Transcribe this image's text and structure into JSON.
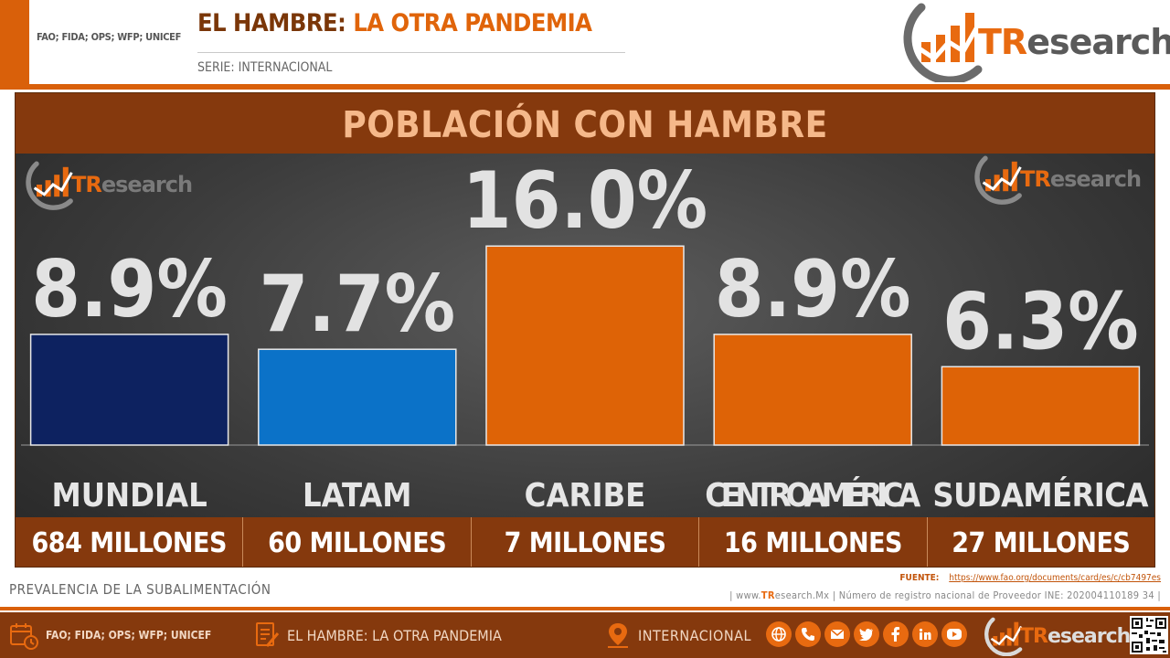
{
  "header": {
    "sources": "FAO; FIDA; OPS; WFP; UNICEF",
    "title_a": "EL HAMBRE:",
    "title_b": "LA OTRA PANDEMIA",
    "series": "SERIE: INTERNACIONAL"
  },
  "brand": {
    "logo_tr": "TR",
    "logo_rest": "esearch"
  },
  "colors": {
    "accent": "#d9600a",
    "dark_brown": "#85390d",
    "mundial": "#0d2260",
    "latam": "#0b72c8",
    "regions": "#de6306"
  },
  "chart_data": {
    "type": "bar",
    "title": "POBLACIÓN CON HAMBRE",
    "categories": [
      "MUNDIAL",
      "LATAM",
      "CARIBE",
      "CENTROAMÉRICA",
      "SUDAMÉRICA"
    ],
    "values": [
      8.9,
      7.7,
      16.0,
      8.9,
      6.3
    ],
    "data_labels": [
      "8.9%",
      "7.7%",
      "16.0%",
      "8.9%",
      "6.3%"
    ],
    "counts": [
      "684 MILLONES",
      "60 MILLONES",
      "7 MILLONES",
      "16 MILLONES",
      "27 MILLONES"
    ],
    "bar_colors": [
      "#0d2260",
      "#0b72c8",
      "#de6306",
      "#de6306",
      "#de6306"
    ],
    "ylim": [
      0,
      20.5
    ],
    "xlabel": "",
    "ylabel": "",
    "grid": false
  },
  "meta": {
    "indicator": "PREVALENCIA DE LA SUBALIMENTACIÓN",
    "source_label": "FUENTE:",
    "source_url": "https://www.fao.org/documents/card/es/c/cb7497es",
    "web_prefix": "| www.",
    "web_tr": "TR",
    "web_rest": "esearch.Mx",
    "registry": "| Número de registro nacional de Proveedor INE: 202004110189 34 |"
  },
  "footer": {
    "sources": "FAO; FIDA; OPS; WFP; UNICEF",
    "title": "EL HAMBRE:  LA OTRA PANDEMIA",
    "series": "INTERNACIONAL",
    "icons": [
      "calendar-clock-icon",
      "document-edit-icon",
      "map-pin-icon",
      "globe-icon",
      "phone-icon",
      "mail-icon",
      "twitter-icon",
      "facebook-icon",
      "linkedin-icon",
      "youtube-icon"
    ]
  }
}
